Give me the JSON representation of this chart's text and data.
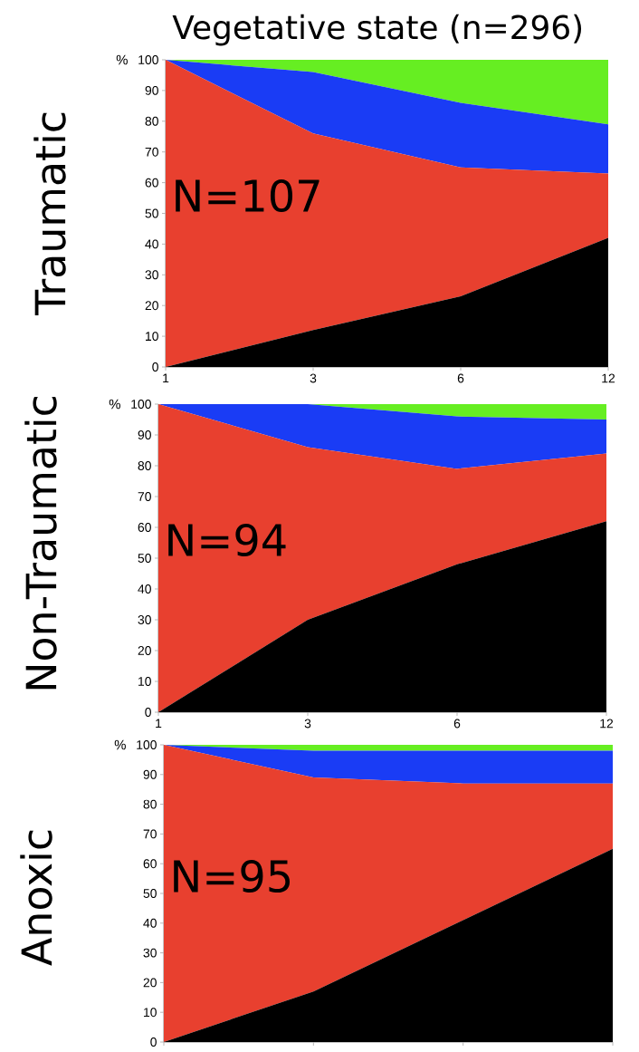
{
  "chart_data": [
    {
      "type": "area",
      "title": "Vegetative state (n=296)",
      "ylabel": "%",
      "annotations": [
        "Traumatic",
        "N=107"
      ],
      "stacked": true,
      "categories": [
        "1",
        "3",
        "6",
        "12"
      ],
      "ylim": [
        0,
        100
      ],
      "yticks": [
        0,
        10,
        20,
        30,
        40,
        50,
        60,
        70,
        80,
        90,
        100
      ],
      "series": [
        {
          "color": "#000000",
          "values": [
            0,
            12,
            23,
            42
          ]
        },
        {
          "color": "#e8402f",
          "values": [
            100,
            64,
            42,
            21
          ]
        },
        {
          "color": "#1a3cf5",
          "values": [
            0,
            20,
            21,
            16
          ]
        },
        {
          "color": "#66ee22",
          "values": [
            0,
            4,
            14,
            21
          ]
        }
      ]
    },
    {
      "type": "area",
      "ylabel": "%",
      "annotations": [
        "Non-Traumatic",
        "N=94"
      ],
      "stacked": true,
      "categories": [
        "1",
        "3",
        "6",
        "12"
      ],
      "ylim": [
        0,
        100
      ],
      "yticks": [
        0,
        10,
        20,
        30,
        40,
        50,
        60,
        70,
        80,
        90,
        100
      ],
      "series": [
        {
          "color": "#000000",
          "values": [
            0,
            30,
            48,
            62
          ]
        },
        {
          "color": "#e8402f",
          "values": [
            100,
            56,
            31,
            22
          ]
        },
        {
          "color": "#1a3cf5",
          "values": [
            0,
            14,
            17,
            11
          ]
        },
        {
          "color": "#66ee22",
          "values": [
            0,
            0,
            4,
            5
          ]
        }
      ]
    },
    {
      "type": "area",
      "ylabel": "%",
      "annotations": [
        "Anoxic",
        "N=95"
      ],
      "stacked": true,
      "categories": [
        "1",
        "3",
        "6",
        "12"
      ],
      "tick_labels": "y",
      "ylim": [
        0,
        100
      ],
      "yticks": [
        0,
        10,
        20,
        30,
        40,
        50,
        60,
        70,
        80,
        90,
        100
      ],
      "series": [
        {
          "color": "#000000",
          "values": [
            0,
            17,
            41,
            65
          ]
        },
        {
          "color": "#e8402f",
          "values": [
            100,
            72,
            46,
            22
          ]
        },
        {
          "color": "#1a3cf5",
          "values": [
            0,
            9,
            11,
            11
          ]
        },
        {
          "color": "#66ee22",
          "values": [
            0,
            2,
            2,
            2
          ]
        }
      ]
    }
  ]
}
